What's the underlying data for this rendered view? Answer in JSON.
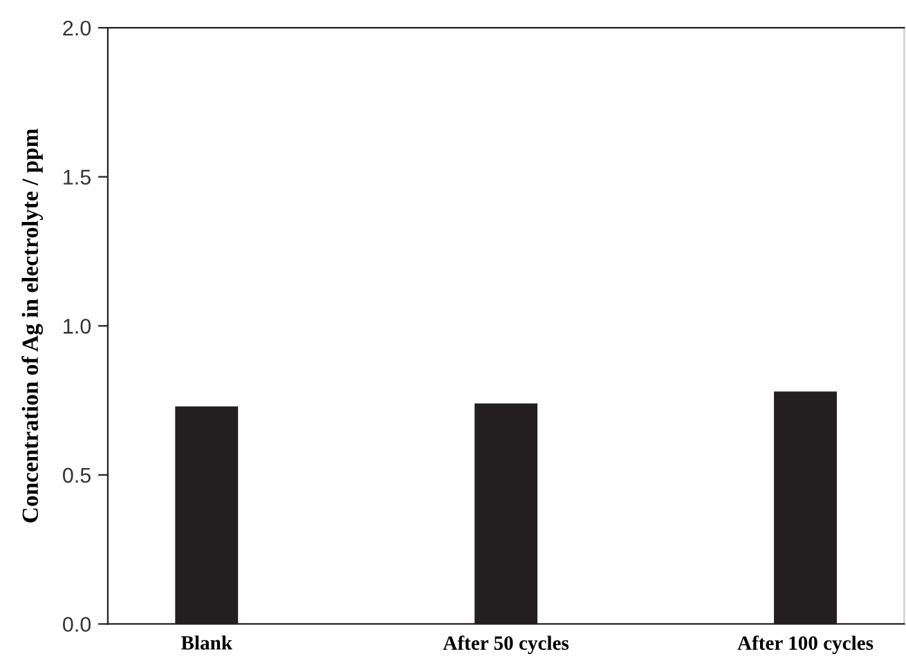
{
  "chart_data": {
    "type": "bar",
    "ylabel": "Concentration of Ag in electrolyte / ppm",
    "categories": [
      "Blank",
      "After 50 cycles",
      "After 100 cycles"
    ],
    "values": [
      0.73,
      0.74,
      0.78
    ],
    "color": "#231f20",
    "ylim": [
      0,
      2.0
    ],
    "yticks": [
      {
        "value": 0,
        "label": "0.0"
      },
      {
        "value": 0.5,
        "label": "0.5"
      },
      {
        "value": 1.0,
        "label": "1.0"
      },
      {
        "value": 1.5,
        "label": "1.5"
      },
      {
        "value": 2.0,
        "label": "2.0"
      }
    ],
    "grid": false,
    "legend": false
  }
}
